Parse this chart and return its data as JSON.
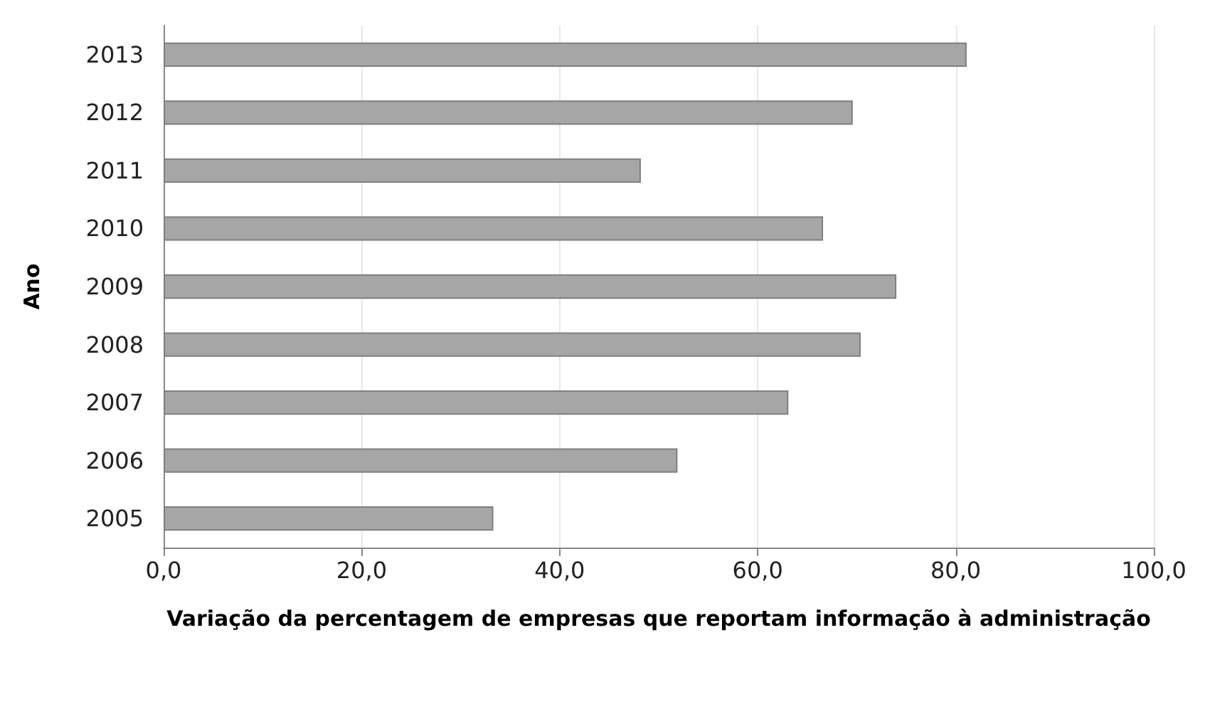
{
  "chart_data": {
    "type": "bar",
    "orientation": "horizontal",
    "xlabel": "Variação da percentagem de empresas que reportam informação à administração",
    "ylabel": "Ano",
    "categories": [
      "2013",
      "2012",
      "2011",
      "2010",
      "2009",
      "2008",
      "2007",
      "2006",
      "2005"
    ],
    "values": [
      81.1,
      69.6,
      48.2,
      66.6,
      74.0,
      70.4,
      63.1,
      51.9,
      33.3
    ],
    "color": "#a6a6a6",
    "xlim": [
      0,
      100
    ],
    "xticks": [
      {
        "value": 0,
        "label": "0,0"
      },
      {
        "value": 20,
        "label": "20,0"
      },
      {
        "value": 40,
        "label": "40,0"
      },
      {
        "value": 60,
        "label": "60,0"
      },
      {
        "value": 80,
        "label": "80,0"
      },
      {
        "value": 100,
        "label": "100,0"
      }
    ],
    "grid": "x"
  }
}
